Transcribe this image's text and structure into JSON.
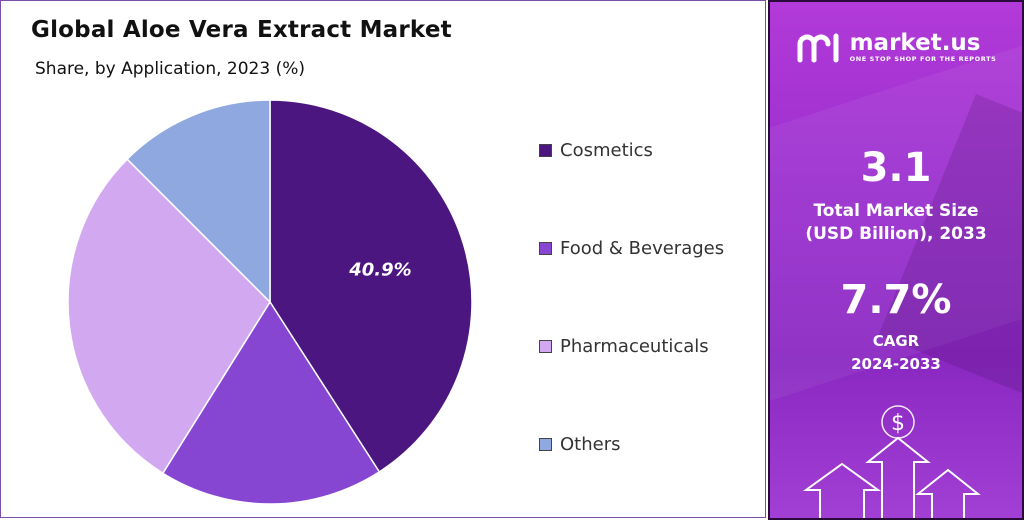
{
  "chart_data": {
    "type": "pie",
    "title": "Global Aloe Vera Extract Market",
    "subtitle": "Share, by Application, 2023 (%)",
    "legend_position": "right",
    "slices": [
      {
        "label": "Cosmetics",
        "value": 40.9,
        "value_label": "40.9%",
        "color": "#4b167f"
      },
      {
        "label": "Food & Beverages",
        "value": 18.0,
        "value_label": "",
        "color": "#8646d2"
      },
      {
        "label": "Pharmaceuticals",
        "value": 28.6,
        "value_label": "",
        "color": "#d2a9f1"
      },
      {
        "label": "Others",
        "value": 12.5,
        "value_label": "",
        "color": "#8fa8e0"
      }
    ]
  },
  "brand": {
    "name": "market.us",
    "tagline": "ONE STOP SHOP FOR THE REPORTS"
  },
  "stats": {
    "market_size_value": "3.1",
    "market_size_label_line1": "Total Market Size",
    "market_size_label_line2": "(USD Billion), 2033",
    "cagr_value": "7.7%",
    "cagr_label_line1": "CAGR",
    "cagr_label_line2": "2024-2033"
  },
  "decoration": {
    "currency_symbol": "$"
  }
}
